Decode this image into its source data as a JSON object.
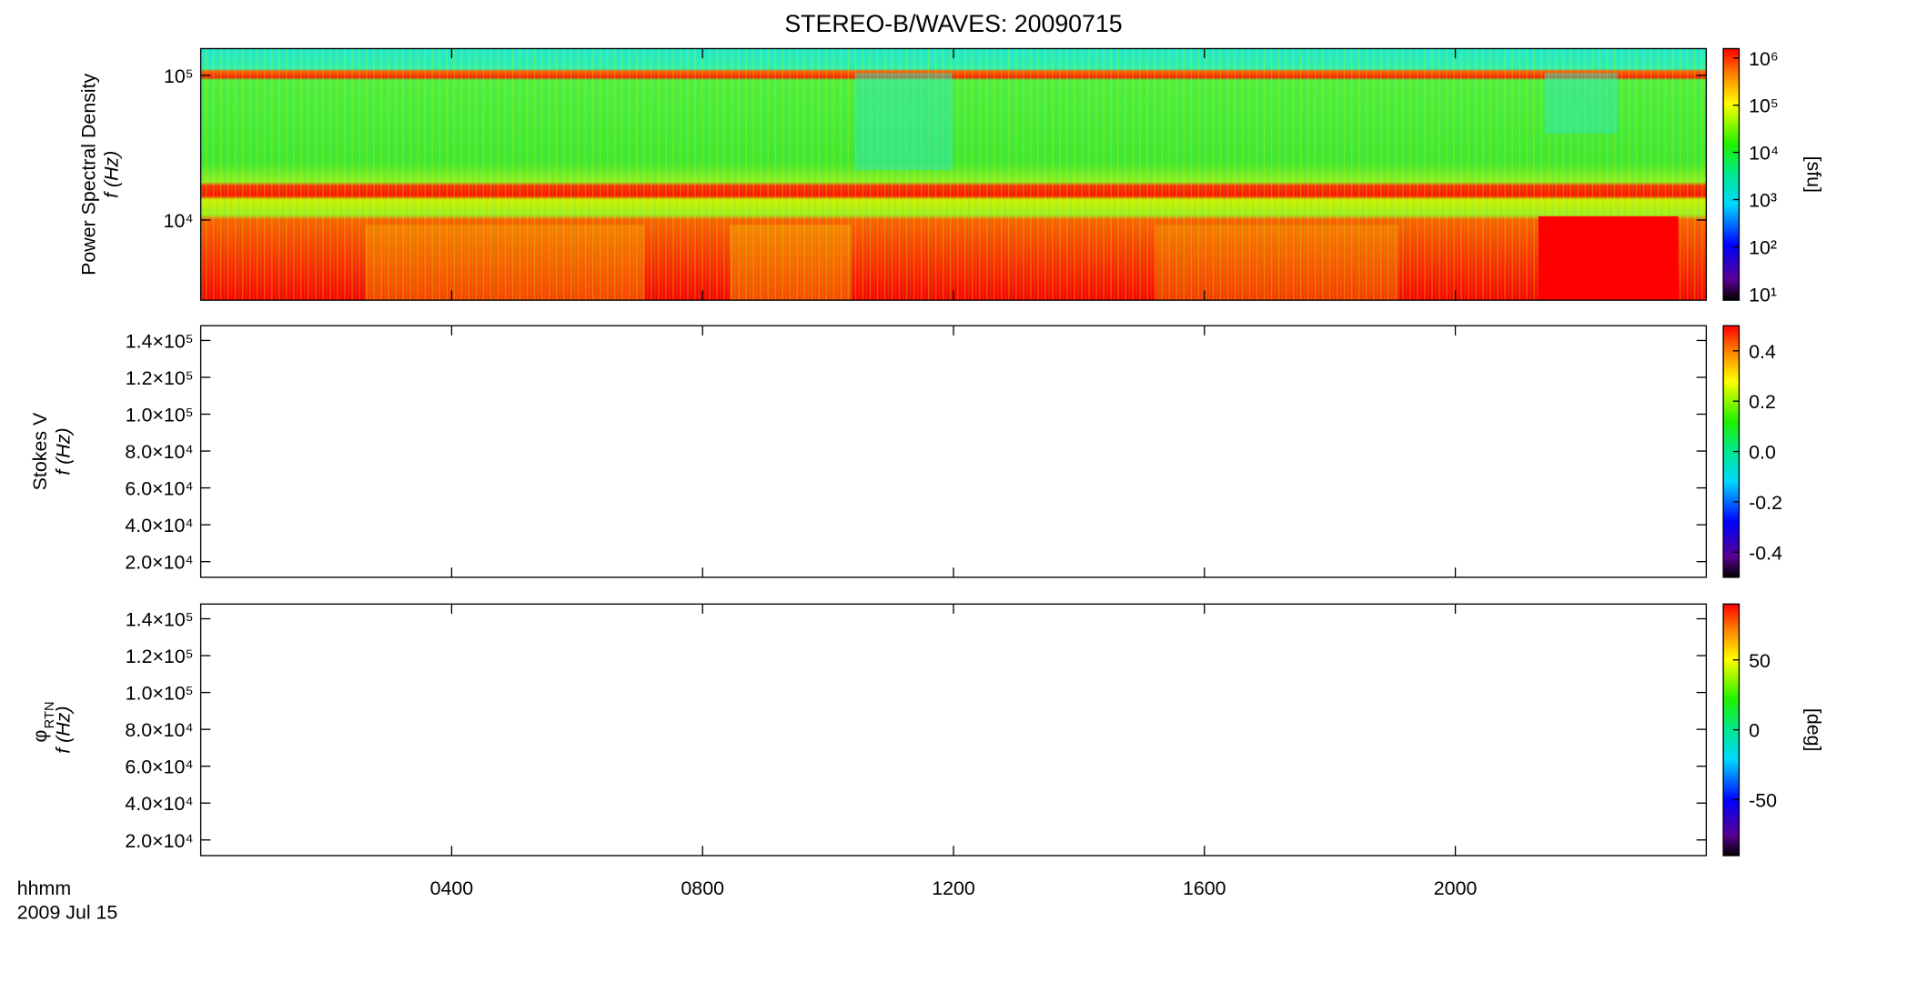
{
  "chart_data": [
    {
      "type": "spectrogram",
      "title": "STEREO-B/WAVES: 20090715",
      "ylabel": [
        "Power Spectral Density",
        "f (Hz)"
      ],
      "ylog": true,
      "ylim": [
        2790,
        153000
      ],
      "yticks": [
        {
          "value": 10000,
          "label": "10⁴"
        },
        {
          "value": 100000,
          "label": "10⁵"
        }
      ],
      "xlim": [
        0,
        24
      ],
      "xticks": [
        4,
        8,
        12,
        16,
        20
      ],
      "colorbar_label": "[sfu]",
      "clog": true,
      "clim": [
        7.4,
        1580000
      ],
      "cticks": [
        {
          "value": 10,
          "label": "10¹"
        },
        {
          "value": 100,
          "label": "10²"
        },
        {
          "value": 1000,
          "label": "10³"
        },
        {
          "value": 10000,
          "label": "10⁴"
        },
        {
          "value": 100000,
          "label": "10⁵"
        },
        {
          "value": 1000000,
          "label": "10⁶"
        }
      ]
    },
    {
      "type": "spectrogram",
      "ylabel": [
        "Stokes V",
        "f (Hz)"
      ],
      "ylog": false,
      "ylim": [
        11500,
        148000
      ],
      "yticks": [
        {
          "value": 20000,
          "label": "2.0×10⁴"
        },
        {
          "value": 40000,
          "label": "4.0×10⁴"
        },
        {
          "value": 60000,
          "label": "6.0×10⁴"
        },
        {
          "value": 80000,
          "label": "8.0×10⁴"
        },
        {
          "value": 100000,
          "label": "1.0×10⁵"
        },
        {
          "value": 120000,
          "label": "1.2×10⁵"
        },
        {
          "value": 140000,
          "label": "1.4×10⁵"
        }
      ],
      "xlim": [
        0,
        24
      ],
      "xticks": [
        4,
        8,
        12,
        16,
        20
      ],
      "clog": false,
      "clim": [
        -0.5,
        0.5
      ],
      "cticks": [
        {
          "value": -0.4,
          "label": "-0.4"
        },
        {
          "value": -0.2,
          "label": "-0.2"
        },
        {
          "value": 0,
          "label": "0.0"
        },
        {
          "value": 0.2,
          "label": "0.2"
        },
        {
          "value": 0.4,
          "label": "0.4"
        }
      ]
    },
    {
      "type": "spectrogram",
      "ylabel": [
        "φ",
        "f (Hz)"
      ],
      "ylabel_sub": "RTN",
      "ylog": false,
      "ylim": [
        11500,
        148000
      ],
      "yticks": [
        {
          "value": 20000,
          "label": "2.0×10⁴"
        },
        {
          "value": 40000,
          "label": "4.0×10⁴"
        },
        {
          "value": 60000,
          "label": "6.0×10⁴"
        },
        {
          "value": 80000,
          "label": "8.0×10⁴"
        },
        {
          "value": 100000,
          "label": "1.0×10⁵"
        },
        {
          "value": 120000,
          "label": "1.2×10⁵"
        },
        {
          "value": 140000,
          "label": "1.4×10⁵"
        }
      ],
      "xlim": [
        0,
        24
      ],
      "xticks": [
        {
          "value": 4,
          "label": "0400"
        },
        {
          "value": 8,
          "label": "0800"
        },
        {
          "value": 12,
          "label": "1200"
        },
        {
          "value": 16,
          "label": "1600"
        },
        {
          "value": 20,
          "label": "2000"
        }
      ],
      "xlabel": "hhmm",
      "date": "2009 Jul 15",
      "colorbar_label": "[deg]",
      "clog": false,
      "clim": [
        -90,
        90
      ],
      "cticks": [
        -50,
        0,
        50
      ]
    }
  ]
}
